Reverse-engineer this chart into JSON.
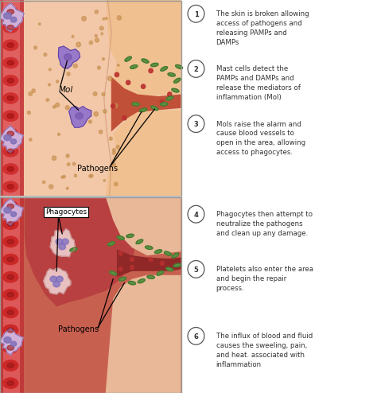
{
  "bg_color": "#ffffff",
  "figure_size": [
    4.74,
    4.94
  ],
  "dpi": 100,
  "panel1": {
    "blood_vessel_color": "#c84040",
    "vessel_wall_color": "#d85050",
    "vessel_lumen_color": "#e06060",
    "skin_color": "#f2c8a8",
    "skin_right_color": "#f0c090",
    "wound_skin_color": "#e8a878",
    "wound_inner_color": "#c05038",
    "rbc_color": "#d03030",
    "rbc_inner": "#a01010",
    "mast_cell_color": "#9878c8",
    "mast_cell_edge": "#6040a0",
    "mast_nucleus_color": "#7858b0",
    "pathogen_color": "#5a9040",
    "pathogen_edge": "#3a6828",
    "dot_color": "#c8986840",
    "red_dot_color": "#bb3030",
    "label_mol": "Mol",
    "label_pathogens": "Pathogens"
  },
  "panel2": {
    "blood_vessel_color": "#c03838",
    "vessel_wall_color": "#d04848",
    "vessel_lumen_color": "#dd5858",
    "inflamed_bg": "#c86050",
    "lower_skin": "#e8b898",
    "wound_inner_color": "#902828",
    "rbc_color": "#cc2828",
    "rbc_inner": "#991818",
    "phagocyte_color": "#e8c0c0",
    "phagocyte_edge": "#c08888",
    "phago_nucleus_color": "#8070c0",
    "pathogen_color": "#5a9040",
    "pathogen_edge": "#3a6828",
    "red_dot_color": "#bb3030",
    "label_phagocytes": "Phagocytes",
    "label_pathogens": "Pathogens"
  },
  "annotations": [
    {
      "num": "1",
      "text": "The skin is broken allowing\naccess of pathogens and\nreleasing PAMPs and\nDAMPs"
    },
    {
      "num": "2",
      "text": "Mast cells detect the\nPAMPs and DAMPs and\nrelease the mediators of\ninflammation (MoI)"
    },
    {
      "num": "3",
      "text": "MoIs raise the alarm and\ncause blood vessels to\nopen in the area, allowing\naccess to phagocytes."
    },
    {
      "num": "4",
      "text": "Phagocytes then attempt to\nneutralize the pathogens\nand clean up any damage."
    },
    {
      "num": "5",
      "text": "Platelets also enter the area\nand begin the repair\nprocess."
    },
    {
      "num": "6",
      "text": "The influx of blood and fluid\ncauses the sweeling, pain,\nand heat. associated with\ninflammation"
    }
  ],
  "border_color": "#999999",
  "text_color": "#333333",
  "divider_color": "#bbbbbb"
}
